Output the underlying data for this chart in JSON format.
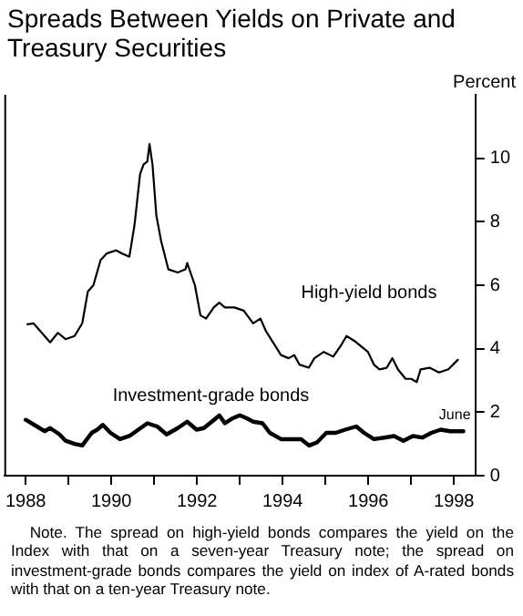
{
  "chart_data": {
    "type": "line",
    "title": "Spreads Between Yields on Private and Treasury Securities",
    "ylabel": "Percent",
    "xlim": [
      1987.5,
      1998.5
    ],
    "xticks": [
      1988,
      {
        "value": 1989,
        "label": null
      },
      1990,
      {
        "value": 1991,
        "label": null
      },
      1992,
      {
        "value": 1993,
        "label": null
      },
      1994,
      {
        "value": 1995,
        "label": null
      },
      1996,
      {
        "value": 1997,
        "label": null
      },
      1998
    ],
    "ylim": [
      0,
      12
    ],
    "yticks": [
      0,
      2,
      4,
      6,
      8,
      10
    ],
    "grid": false,
    "legend": false,
    "line_style": "solid",
    "marker": "none",
    "series": [
      {
        "name": "High-yield bonds",
        "color": "#000000",
        "x": [
          1988.04,
          1988.18,
          1988.57,
          1988.75,
          1988.93,
          1989.14,
          1989.32,
          1989.45,
          1989.58,
          1989.75,
          1989.89,
          1990.11,
          1990.25,
          1990.42,
          1990.54,
          1990.67,
          1990.75,
          1990.84,
          1990.89,
          1990.96,
          1991.05,
          1991.16,
          1991.33,
          1991.55,
          1991.73,
          1991.77,
          1991.95,
          1992.08,
          1992.21,
          1992.39,
          1992.52,
          1992.65,
          1992.87,
          1993.09,
          1993.31,
          1993.48,
          1993.61,
          1993.75,
          1993.96,
          1994.14,
          1994.27,
          1994.39,
          1994.61,
          1994.74,
          1994.96,
          1995.18,
          1995.36,
          1995.49,
          1995.67,
          1995.99,
          1996.13,
          1996.26,
          1996.43,
          1996.56,
          1996.69,
          1996.87,
          1997.0,
          1997.13,
          1997.22,
          1997.43,
          1997.65,
          1997.87,
          1998.09
        ],
        "values": [
          4.77,
          4.8,
          4.2,
          4.5,
          4.3,
          4.4,
          4.8,
          5.8,
          6.0,
          6.8,
          7.0,
          7.1,
          7.0,
          6.9,
          7.9,
          9.5,
          9.8,
          9.9,
          10.45,
          9.8,
          8.2,
          7.4,
          6.5,
          6.4,
          6.5,
          6.7,
          6.0,
          5.05,
          4.95,
          5.3,
          5.45,
          5.3,
          5.3,
          5.2,
          4.8,
          4.95,
          4.55,
          4.25,
          3.8,
          3.7,
          3.8,
          3.5,
          3.4,
          3.7,
          3.9,
          3.75,
          4.1,
          4.4,
          4.25,
          3.9,
          3.5,
          3.35,
          3.4,
          3.7,
          3.35,
          3.05,
          3.05,
          2.95,
          3.35,
          3.4,
          3.25,
          3.35,
          3.65
        ]
      },
      {
        "name": "Investment-grade bonds",
        "color": "#000000",
        "x": [
          1988.0,
          1988.26,
          1988.44,
          1988.57,
          1988.79,
          1988.93,
          1989.14,
          1989.32,
          1989.54,
          1989.67,
          1989.8,
          1989.98,
          1990.2,
          1990.42,
          1990.63,
          1990.84,
          1991.07,
          1991.29,
          1991.55,
          1991.77,
          1991.99,
          1992.16,
          1992.39,
          1992.52,
          1992.65,
          1992.82,
          1993.0,
          1993.17,
          1993.31,
          1993.53,
          1993.7,
          1993.96,
          1994.22,
          1994.43,
          1994.62,
          1994.8,
          1995.02,
          1995.24,
          1995.46,
          1995.72,
          1995.9,
          1996.13,
          1996.38,
          1996.6,
          1996.82,
          1997.04,
          1997.26,
          1997.47,
          1997.69,
          1997.91,
          1998.09,
          1998.22
        ],
        "values": [
          1.76,
          1.55,
          1.4,
          1.5,
          1.3,
          1.1,
          1.0,
          0.95,
          1.35,
          1.45,
          1.6,
          1.35,
          1.15,
          1.25,
          1.45,
          1.65,
          1.55,
          1.3,
          1.5,
          1.7,
          1.45,
          1.5,
          1.75,
          1.9,
          1.65,
          1.8,
          1.9,
          1.8,
          1.7,
          1.65,
          1.35,
          1.15,
          1.15,
          1.15,
          0.95,
          1.05,
          1.35,
          1.35,
          1.45,
          1.55,
          1.35,
          1.15,
          1.2,
          1.25,
          1.1,
          1.25,
          1.2,
          1.35,
          1.45,
          1.4,
          1.4,
          1.4
        ]
      }
    ],
    "annotations": [
      {
        "text": "June",
        "x": 1998.22,
        "y": 1.4
      },
      "Note. The spread on high-yield bonds compares the yield on the Index with that on a seven-year Treasury note; the spread on investment-grade bonds compares the yield on index of A-rated bonds with that on a ten-year Treasury note."
    ]
  }
}
